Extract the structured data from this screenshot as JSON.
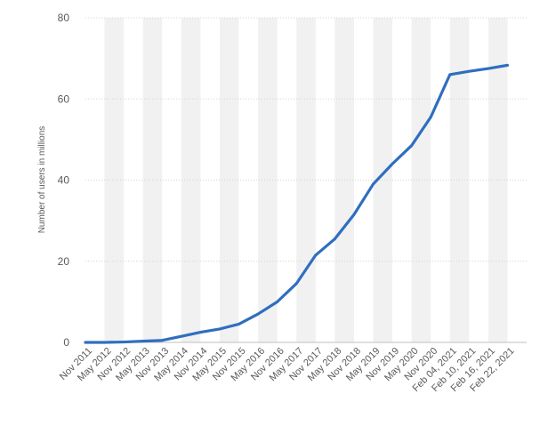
{
  "chart_data": {
    "type": "line",
    "title": "",
    "xlabel": "",
    "ylabel": "Number of users in millions",
    "ylim": [
      0,
      80
    ],
    "yticks": [
      0,
      20,
      40,
      60,
      80
    ],
    "grid": true,
    "legend": "none",
    "colors": {
      "line": "#2f6ebf",
      "band": "#f1f1f1",
      "grid": "#d4d4d4",
      "axis_text": "#5a5a5a"
    },
    "categories": [
      "Nov 2011",
      "May 2012",
      "Nov 2012",
      "May 2013",
      "Nov 2013",
      "May 2014",
      "Nov 2014",
      "May 2015",
      "Nov 2015",
      "May 2016",
      "Nov 2016",
      "May 2017",
      "Nov 2017",
      "May 2018",
      "Nov 2018",
      "May 2019",
      "Nov 2019",
      "May 2020",
      "Nov 2020",
      "Feb 04, 2021",
      "Feb 10, 2021",
      "Feb 16, 2021",
      "Feb 22, 2021"
    ],
    "series": [
      {
        "values": [
          0,
          0,
          0.1,
          0.3,
          0.5,
          1.5,
          2.5,
          3.3,
          4.5,
          7.0,
          10.0,
          14.5,
          21.5,
          25.5,
          31.5,
          39.0,
          44.0,
          48.5,
          55.5,
          66.0,
          66.8,
          67.5,
          68.3
        ]
      }
    ]
  }
}
